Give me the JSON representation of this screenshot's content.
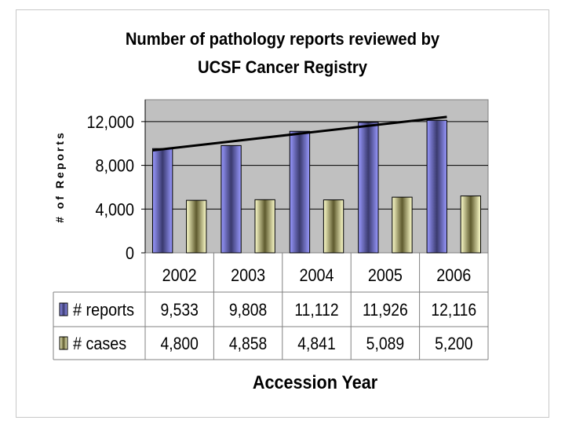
{
  "chart_data": {
    "type": "bar",
    "title_lines": [
      "Number of pathology reports reviewed by",
      "UCSF Cancer Registry"
    ],
    "xlabel": "Accession Year",
    "ylabel": "# of Reports",
    "categories": [
      "2002",
      "2003",
      "2004",
      "2005",
      "2006"
    ],
    "ylim": [
      0,
      14000
    ],
    "yticks": [
      0,
      4000,
      8000,
      12000
    ],
    "ytick_labels": [
      "0",
      "4,000",
      "8,000",
      "12,000"
    ],
    "series": [
      {
        "name": "# reports",
        "values": [
          9533,
          9808,
          11112,
          11926,
          12116
        ],
        "labels": [
          "9,533",
          "9,808",
          "11,112",
          "11,926",
          "12,116"
        ],
        "color": "#9999ff",
        "dark_color": "#3a3a6e"
      },
      {
        "name": "# cases",
        "values": [
          4800,
          4858,
          4841,
          5089,
          5200
        ],
        "labels": [
          "4,800",
          "4,858",
          "4,841",
          "5,089",
          "5,200"
        ],
        "color": "#ffffcc",
        "dark_color": "#5e5a2e"
      }
    ],
    "trendline": {
      "series": "# reports",
      "type": "linear",
      "color": "#000000"
    },
    "plot_background": "#c0c0c0",
    "data_table": true
  }
}
